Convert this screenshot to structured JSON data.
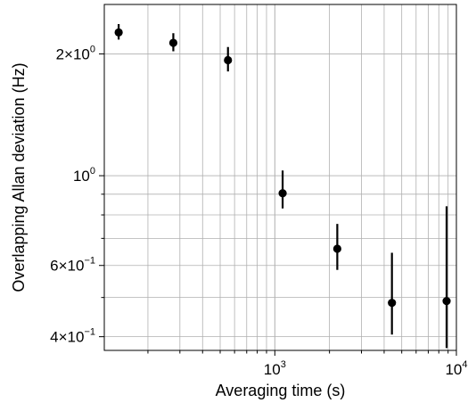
{
  "chart_data": {
    "type": "scatter",
    "title": "",
    "xlabel": "Averaging time (s)",
    "ylabel": "Overlapping Allan deviation (Hz)",
    "xscale": "log",
    "yscale": "log",
    "xlim": [
      115,
      10000
    ],
    "ylim": [
      0.37,
      2.65
    ],
    "grid": true,
    "legend": "none",
    "marker_color": "#000000",
    "grid_color": "#b0b0b0",
    "x_ticks": [
      {
        "value": 1000,
        "base": "10",
        "exp": "3"
      },
      {
        "value": 10000,
        "base": "10",
        "exp": "4"
      }
    ],
    "y_ticks": [
      {
        "value": 0.4,
        "base": "4×10",
        "exp": "−1"
      },
      {
        "value": 0.6,
        "base": "6×10",
        "exp": "−1"
      },
      {
        "value": 1.0,
        "base": "10",
        "exp": "0"
      },
      {
        "value": 2.0,
        "base": "2×10",
        "exp": "0"
      }
    ],
    "points": [
      {
        "x": 138,
        "y": 2.26,
        "ylo": 2.17,
        "yhi": 2.37
      },
      {
        "x": 276,
        "y": 2.13,
        "ylo": 2.03,
        "yhi": 2.25
      },
      {
        "x": 552,
        "y": 1.93,
        "ylo": 1.81,
        "yhi": 2.08
      },
      {
        "x": 1104,
        "y": 0.905,
        "ylo": 0.83,
        "yhi": 1.03
      },
      {
        "x": 2208,
        "y": 0.66,
        "ylo": 0.585,
        "yhi": 0.76
      },
      {
        "x": 4416,
        "y": 0.485,
        "ylo": 0.405,
        "yhi": 0.645
      },
      {
        "x": 8832,
        "y": 0.49,
        "ylo": 0.375,
        "yhi": 0.84
      }
    ]
  }
}
